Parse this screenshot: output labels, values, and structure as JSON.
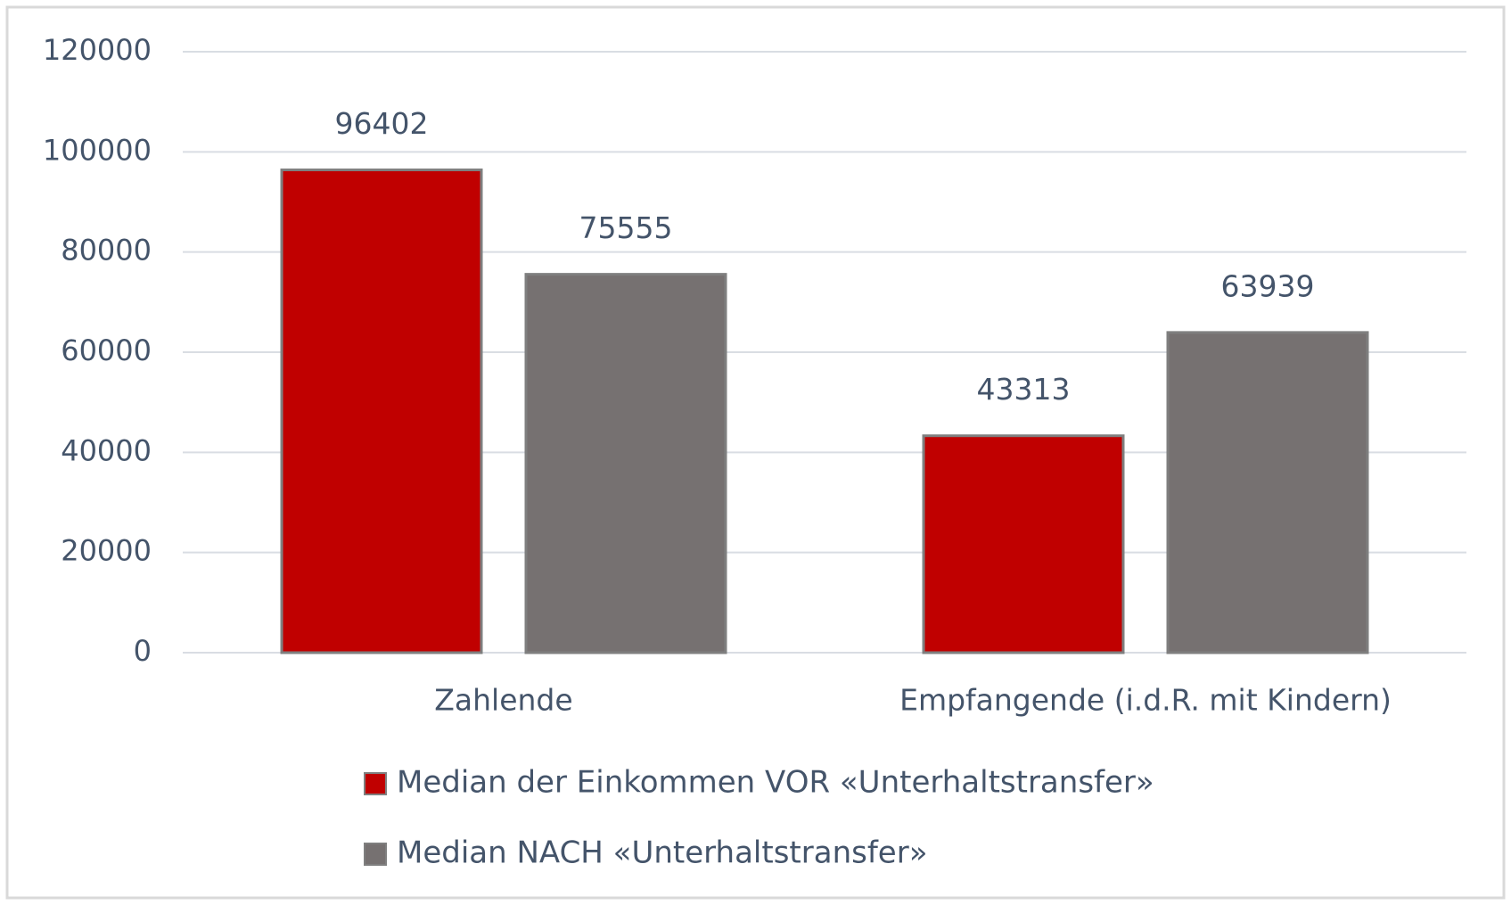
{
  "chart_data": {
    "type": "bar",
    "categories": [
      "Zahlende",
      "Empfangende (i.d.R. mit Kindern)"
    ],
    "series": [
      {
        "name": "Median der Einkommen VOR «Unterhaltstransfer»",
        "color": "#c00000",
        "values": [
          96402,
          43313
        ]
      },
      {
        "name": "Median NACH «Unterhaltstransfer»",
        "color": "#767171",
        "values": [
          75555,
          63939
        ]
      }
    ],
    "ylim": [
      0,
      120000
    ],
    "yticks": [
      0,
      20000,
      40000,
      60000,
      80000,
      100000,
      120000
    ],
    "grid": true,
    "legend": "bottom"
  }
}
